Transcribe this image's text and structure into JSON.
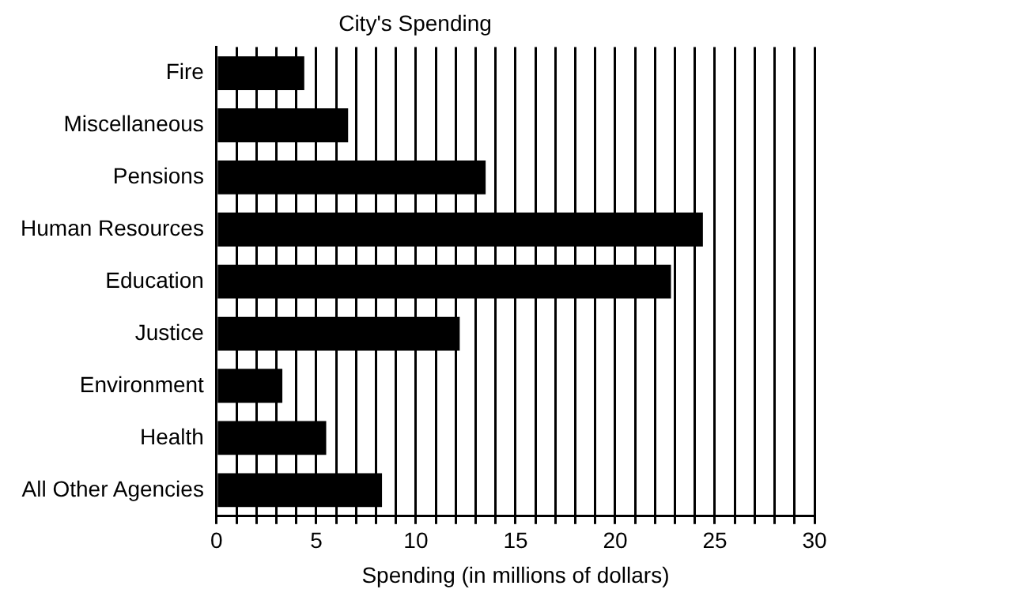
{
  "chart_data": {
    "type": "bar",
    "orientation": "horizontal",
    "title": "City's Spending",
    "xlabel": "Spending (in millions of dollars)",
    "categories": [
      "Fire",
      "Miscellaneous",
      "Pensions",
      "Human Resources",
      "Education",
      "Justice",
      "Environment",
      "Health",
      "All Other Agencies"
    ],
    "values": [
      4.4,
      6.6,
      13.5,
      24.4,
      22.8,
      12.2,
      3.3,
      5.5,
      8.3
    ],
    "color": "#000000",
    "xlim": [
      0,
      30
    ],
    "xticks": [
      0,
      {
        "value": 1,
        "label": null
      },
      {
        "value": 2,
        "label": null
      },
      {
        "value": 3,
        "label": null
      },
      {
        "value": 4,
        "label": null
      },
      5,
      {
        "value": 6,
        "label": null
      },
      {
        "value": 7,
        "label": null
      },
      {
        "value": 8,
        "label": null
      },
      {
        "value": 9,
        "label": null
      },
      10,
      {
        "value": 11,
        "label": null
      },
      {
        "value": 12,
        "label": null
      },
      {
        "value": 13,
        "label": null
      },
      {
        "value": 14,
        "label": null
      },
      15,
      {
        "value": 16,
        "label": null
      },
      {
        "value": 17,
        "label": null
      },
      {
        "value": 18,
        "label": null
      },
      {
        "value": 19,
        "label": null
      },
      20,
      {
        "value": 21,
        "label": null
      },
      {
        "value": 22,
        "label": null
      },
      {
        "value": 23,
        "label": null
      },
      {
        "value": 24,
        "label": null
      },
      25,
      {
        "value": 26,
        "label": null
      },
      {
        "value": 27,
        "label": null
      },
      {
        "value": 28,
        "label": null
      },
      {
        "value": 29,
        "label": null
      },
      30
    ],
    "grid": "x",
    "legend": false
  }
}
